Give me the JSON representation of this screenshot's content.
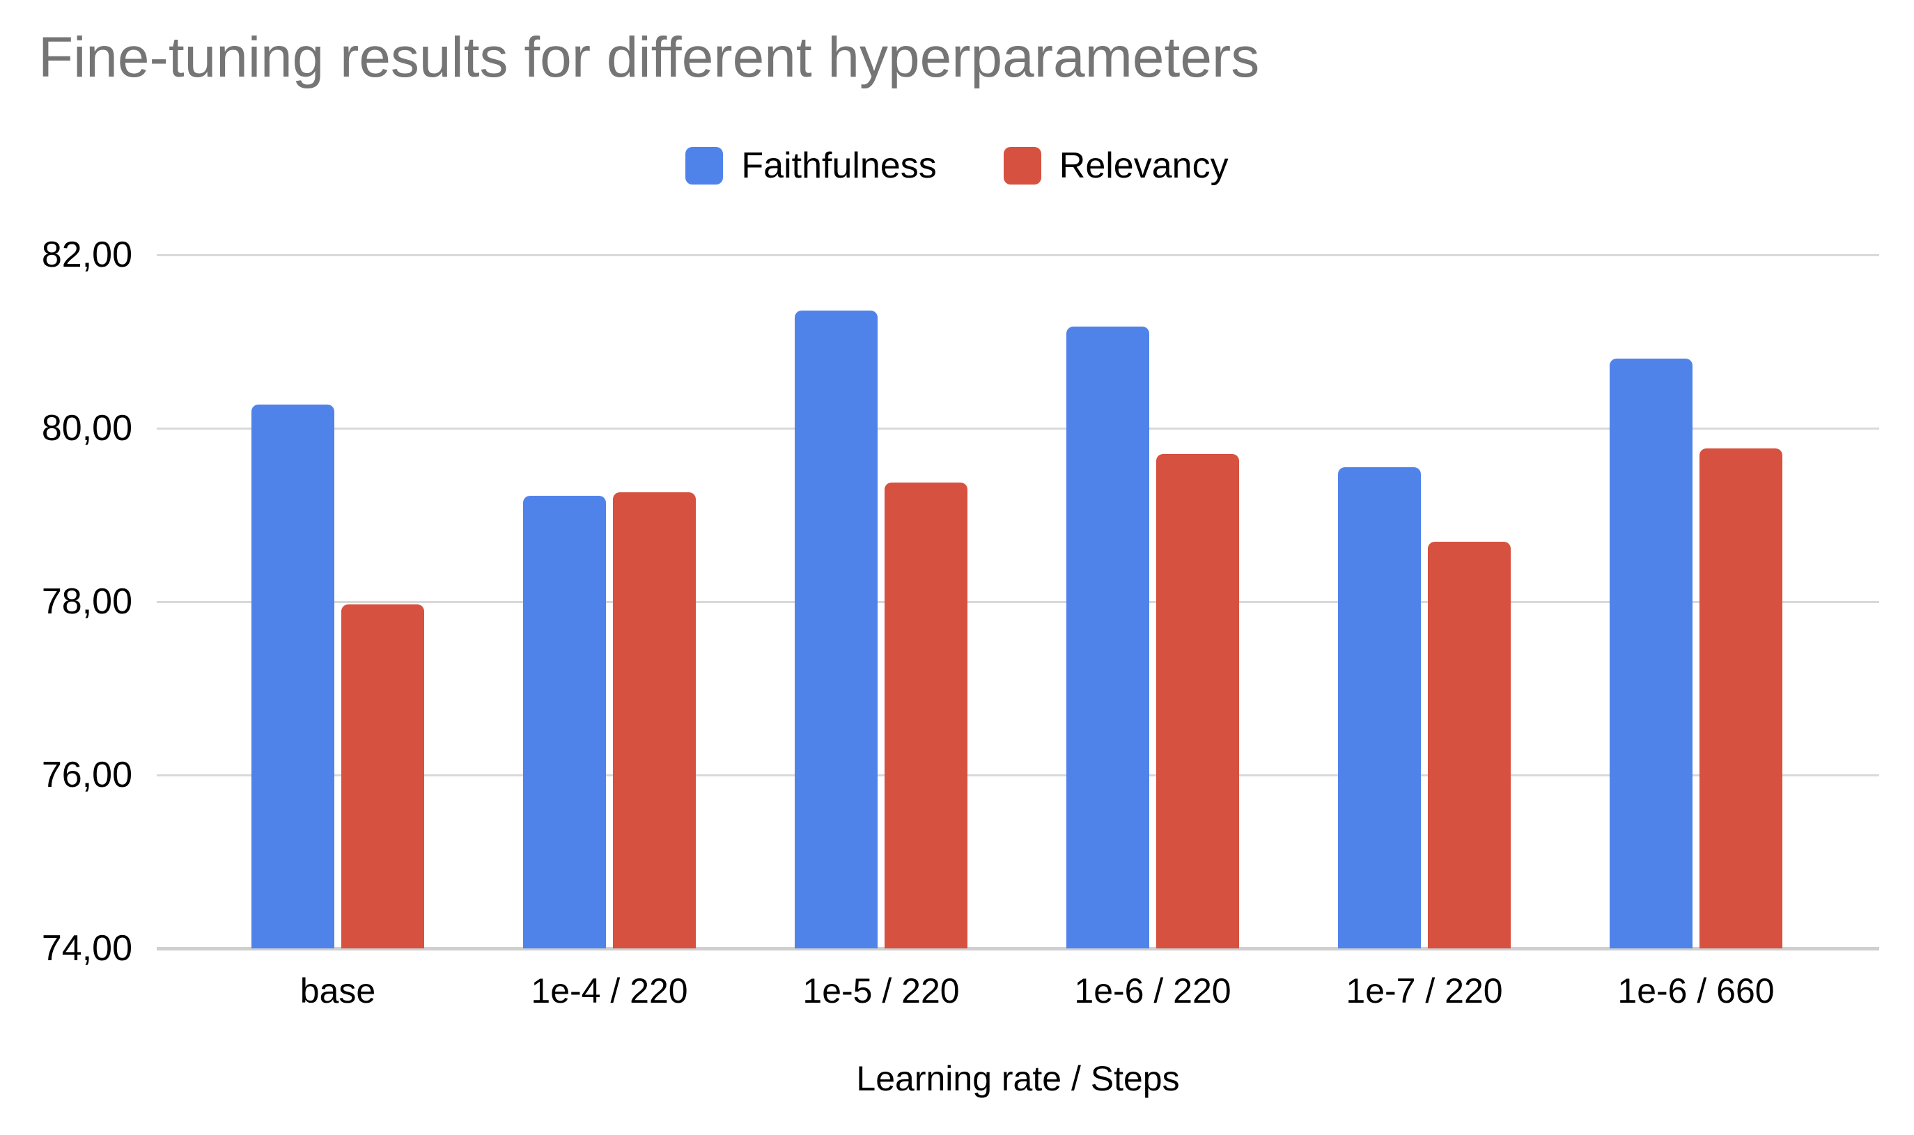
{
  "chart_data": {
    "type": "bar",
    "title": "Fine-tuning results for different hyperparameters",
    "categories": [
      "base",
      "1e-4 / 220",
      "1e-5 / 220",
      "1e-6 / 220",
      "1e-7 / 220",
      "1e-6 / 660"
    ],
    "series": [
      {
        "name": "Faithfulness",
        "color": "#5083EA",
        "values": [
          80.27,
          79.22,
          81.36,
          81.17,
          79.55,
          80.8
        ]
      },
      {
        "name": "Relevancy",
        "color": "#D6513F",
        "values": [
          77.97,
          79.26,
          79.37,
          79.7,
          78.69,
          79.77
        ]
      }
    ],
    "xlabel": "Learning rate / Steps",
    "ylabel": "",
    "ylim": [
      74,
      82
    ],
    "ytick_step": 2,
    "ytick_labels_top_to_bottom": [
      "82,00",
      "80,00",
      "78,00",
      "76,00",
      "74,00"
    ],
    "decimal_separator": ",",
    "grid": true,
    "legend_position": "top",
    "colors": {
      "title_text": "#757575",
      "axis_text": "#000000",
      "gridline": "#d9d9d9",
      "axis_baseline": "#cfcfcf",
      "background": "#ffffff"
    }
  }
}
